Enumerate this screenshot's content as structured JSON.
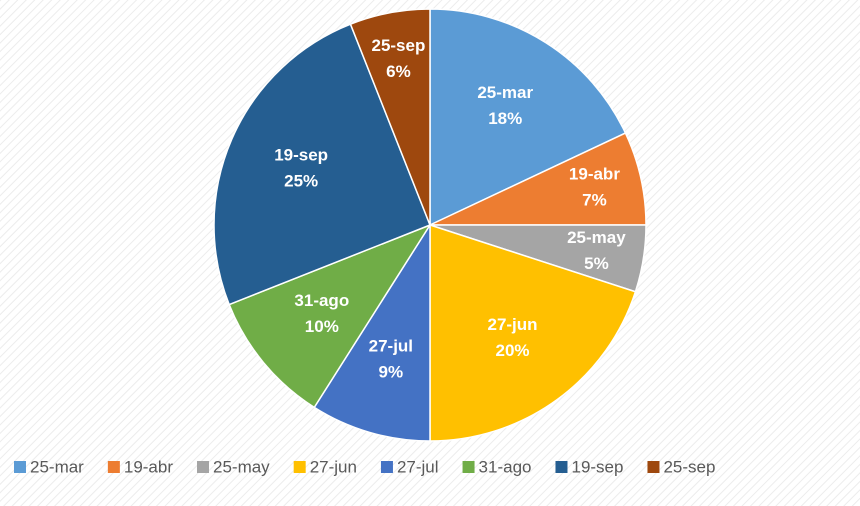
{
  "chart_data": {
    "type": "pie",
    "categories": [
      "25-mar",
      "19-abr",
      "25-may",
      "27-jun",
      "27-jul",
      "31-ago",
      "19-sep",
      "25-sep"
    ],
    "values": [
      18,
      7,
      5,
      20,
      9,
      10,
      25,
      6
    ],
    "value_labels": [
      "18%",
      "7%",
      "5%",
      "20%",
      "9%",
      "10%",
      "25%",
      "6%"
    ],
    "colors": [
      "#5b9bd5",
      "#ed7d31",
      "#a5a5a5",
      "#ffc000",
      "#4472c4",
      "#70ad47",
      "#255e91",
      "#9e480e"
    ],
    "legend": "bottom"
  }
}
